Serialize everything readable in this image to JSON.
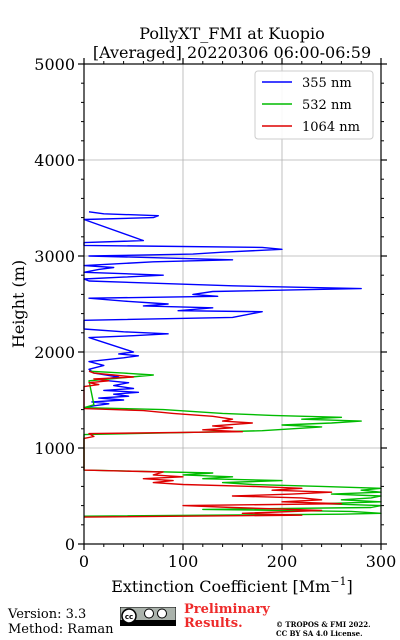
{
  "chart_data": {
    "type": "line",
    "title": "PollyXT_FMI at Kuopio",
    "subtitle": "[Averaged] 20220306 06:00-06:59",
    "xlabel": "Extinction Coefficient [Mm",
    "xlabel_sup": "−1",
    "xlabel_end": "]",
    "ylabel": "Height (m)",
    "xlim": [
      0,
      300
    ],
    "ylim": [
      0,
      5000
    ],
    "xticks": [
      0,
      100,
      200,
      300
    ],
    "yticks": [
      0,
      1000,
      2000,
      3000,
      4000,
      5000
    ],
    "grid": true,
    "legend_position": "top-right",
    "series": [
      {
        "name": "355 nm",
        "color": "#0000ff",
        "points": [
          [
            0,
            1420
          ],
          [
            10,
            1440
          ],
          [
            25,
            1460
          ],
          [
            8,
            1480
          ],
          [
            40,
            1500
          ],
          [
            15,
            1520
          ],
          [
            45,
            1540
          ],
          [
            30,
            1560
          ],
          [
            55,
            1580
          ],
          [
            20,
            1600
          ],
          [
            50,
            1620
          ],
          [
            30,
            1650
          ],
          [
            45,
            1680
          ],
          [
            15,
            1710
          ],
          [
            35,
            1740
          ],
          [
            10,
            1780
          ],
          [
            5,
            1820
          ],
          [
            20,
            1860
          ],
          [
            5,
            1900
          ],
          [
            40,
            1940
          ],
          [
            55,
            1960
          ],
          [
            35,
            1980
          ],
          [
            50,
            2000
          ],
          [
            5,
            2150
          ],
          [
            50,
            2170
          ],
          [
            85,
            2190
          ],
          [
            40,
            2210
          ],
          [
            0,
            2240
          ],
          [
            0,
            2330
          ],
          [
            150,
            2360
          ],
          [
            180,
            2420
          ],
          [
            95,
            2430
          ],
          [
            130,
            2460
          ],
          [
            60,
            2480
          ],
          [
            85,
            2500
          ],
          [
            40,
            2530
          ],
          [
            5,
            2560
          ],
          [
            135,
            2580
          ],
          [
            110,
            2600
          ],
          [
            130,
            2630
          ],
          [
            280,
            2660
          ],
          [
            150,
            2690
          ],
          [
            5,
            2740
          ],
          [
            0,
            2760
          ],
          [
            40,
            2780
          ],
          [
            80,
            2800
          ],
          [
            30,
            2820
          ],
          [
            0,
            2830
          ],
          [
            15,
            2860
          ],
          [
            30,
            2880
          ],
          [
            0,
            2900
          ],
          [
            70,
            2940
          ],
          [
            150,
            2960
          ],
          [
            80,
            2980
          ],
          [
            5,
            3000
          ],
          [
            110,
            3020
          ],
          [
            140,
            3040
          ],
          [
            200,
            3070
          ],
          [
            180,
            3090
          ],
          [
            0,
            3110
          ],
          [
            0,
            3140
          ],
          [
            60,
            3160
          ],
          [
            0,
            3380
          ],
          [
            70,
            3400
          ],
          [
            75,
            3420
          ],
          [
            20,
            3440
          ],
          [
            5,
            3460
          ]
        ]
      },
      {
        "name": "532 nm",
        "color": "#00bb00",
        "points": [
          [
            0,
            290
          ],
          [
            260,
            310
          ],
          [
            300,
            320
          ],
          [
            270,
            340
          ],
          [
            120,
            360
          ],
          [
            290,
            380
          ],
          [
            300,
            400
          ],
          [
            240,
            420
          ],
          [
            300,
            440
          ],
          [
            260,
            460
          ],
          [
            290,
            480
          ],
          [
            300,
            500
          ],
          [
            250,
            520
          ],
          [
            300,
            540
          ],
          [
            280,
            560
          ],
          [
            300,
            580
          ],
          [
            240,
            600
          ],
          [
            170,
            620
          ],
          [
            140,
            640
          ],
          [
            200,
            660
          ],
          [
            120,
            680
          ],
          [
            150,
            700
          ],
          [
            100,
            720
          ],
          [
            130,
            740
          ],
          [
            0,
            770
          ],
          [
            0,
            1140
          ],
          [
            100,
            1160
          ],
          [
            180,
            1180
          ],
          [
            210,
            1200
          ],
          [
            240,
            1220
          ],
          [
            200,
            1240
          ],
          [
            250,
            1260
          ],
          [
            280,
            1280
          ],
          [
            220,
            1300
          ],
          [
            260,
            1320
          ],
          [
            190,
            1340
          ],
          [
            140,
            1360
          ],
          [
            80,
            1400
          ],
          [
            0,
            1420
          ],
          [
            10,
            1450
          ],
          [
            5,
            1700
          ],
          [
            70,
            1760
          ],
          [
            40,
            1780
          ],
          [
            5,
            1800
          ]
        ]
      },
      {
        "name": "1064 nm",
        "color": "#dd0000",
        "points": [
          [
            0,
            280
          ],
          [
            220,
            300
          ],
          [
            160,
            320
          ],
          [
            240,
            350
          ],
          [
            150,
            380
          ],
          [
            100,
            400
          ],
          [
            260,
            420
          ],
          [
            200,
            440
          ],
          [
            240,
            460
          ],
          [
            220,
            480
          ],
          [
            150,
            500
          ],
          [
            210,
            520
          ],
          [
            250,
            540
          ],
          [
            190,
            560
          ],
          [
            220,
            580
          ],
          [
            170,
            600
          ],
          [
            100,
            620
          ],
          [
            70,
            640
          ],
          [
            90,
            660
          ],
          [
            60,
            680
          ],
          [
            100,
            700
          ],
          [
            70,
            720
          ],
          [
            80,
            750
          ],
          [
            0,
            770
          ],
          [
            0,
            1100
          ],
          [
            10,
            1120
          ],
          [
            5,
            1150
          ],
          [
            160,
            1170
          ],
          [
            120,
            1190
          ],
          [
            150,
            1210
          ],
          [
            130,
            1230
          ],
          [
            170,
            1260
          ],
          [
            140,
            1280
          ],
          [
            150,
            1300
          ],
          [
            130,
            1330
          ],
          [
            90,
            1360
          ],
          [
            60,
            1390
          ],
          [
            0,
            1410
          ],
          [
            0,
            1640
          ],
          [
            15,
            1660
          ],
          [
            5,
            1680
          ],
          [
            25,
            1700
          ],
          [
            10,
            1720
          ],
          [
            50,
            1740
          ],
          [
            30,
            1760
          ],
          [
            10,
            1780
          ],
          [
            5,
            1800
          ]
        ]
      }
    ]
  },
  "footer": {
    "version": "Version: 3.3",
    "method": "Method: Raman",
    "preliminary_line1": "Preliminary",
    "preliminary_line2": "Results.",
    "copyright_line1": "© TROPOS & FMI 2022.",
    "copyright_line2": "CC BY SA 4.0 License.",
    "cc_badge": "cc-by-sa-icon"
  }
}
